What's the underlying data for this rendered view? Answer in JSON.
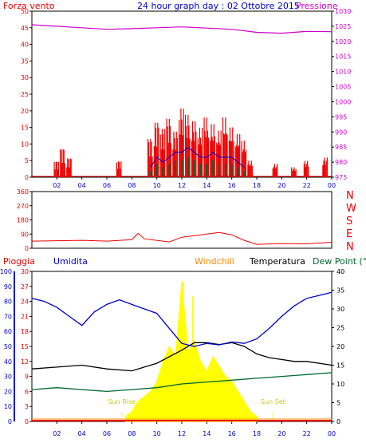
{
  "title": "24 hour graph day : 02 Ottobre 2015",
  "colors": {
    "red": "#ee0000",
    "blue": "#0000cc",
    "magenta": "#cc00cc",
    "green": "#006633",
    "yellow": "#ffff00",
    "orange": "#ff8800",
    "black": "#000000"
  },
  "chart_data": [
    {
      "type": "bar",
      "panel": "wind",
      "left_label": "Forza vento",
      "right_label": "Pressione",
      "left_axis": {
        "ticks": [
          0,
          5,
          10,
          15,
          20,
          25,
          30,
          35,
          40,
          45,
          50
        ],
        "range": [
          0,
          50
        ]
      },
      "right_axis": {
        "ticks": [
          975,
          980,
          985,
          990,
          995,
          1000,
          1005,
          1010,
          1015,
          1020,
          1025,
          1030
        ],
        "range": [
          975,
          1030
        ]
      },
      "x_ticks": [
        "02",
        "04",
        "06",
        "08",
        "10",
        "12",
        "14",
        "16",
        "18",
        "20",
        "22",
        "00"
      ],
      "wind_gust_bursts": [
        [
          2,
          5
        ],
        [
          2.5,
          9
        ],
        [
          3,
          6
        ],
        [
          7,
          5
        ],
        [
          9.5,
          12
        ],
        [
          10,
          17
        ],
        [
          10.5,
          15
        ],
        [
          11,
          18
        ],
        [
          11.5,
          14
        ],
        [
          12,
          21
        ],
        [
          12.5,
          19
        ],
        [
          13,
          17
        ],
        [
          13.5,
          15
        ],
        [
          14,
          18
        ],
        [
          14.5,
          16
        ],
        [
          15,
          14
        ],
        [
          15.5,
          18
        ],
        [
          16,
          15
        ],
        [
          16.5,
          13
        ],
        [
          17,
          11
        ],
        [
          17.5,
          5
        ],
        [
          19.5,
          4
        ],
        [
          21,
          3
        ],
        [
          22,
          5
        ],
        [
          23.5,
          6
        ]
      ],
      "wind_avg": [
        [
          9.5,
          2
        ],
        [
          10,
          4
        ],
        [
          10.5,
          3
        ],
        [
          11,
          4
        ],
        [
          11.5,
          5
        ],
        [
          12,
          5
        ],
        [
          12.5,
          6
        ],
        [
          13,
          5
        ],
        [
          13.5,
          4
        ],
        [
          14,
          4
        ],
        [
          14.5,
          5
        ],
        [
          15,
          4
        ],
        [
          15.5,
          4
        ],
        [
          16,
          4
        ],
        [
          16.5,
          3
        ],
        [
          17,
          2
        ]
      ],
      "pressure": [
        [
          0,
          1025.5
        ],
        [
          2,
          1025
        ],
        [
          4,
          1024.5
        ],
        [
          6,
          1024
        ],
        [
          8,
          1024.2
        ],
        [
          10,
          1024.5
        ],
        [
          12,
          1024.8
        ],
        [
          14,
          1024.4
        ],
        [
          16,
          1024
        ],
        [
          18,
          1023
        ],
        [
          20,
          1022.7
        ],
        [
          22,
          1023.3
        ],
        [
          24,
          1023.2
        ]
      ]
    },
    {
      "type": "line",
      "panel": "direction",
      "right_labels": [
        "N",
        "W",
        "S",
        "E",
        "N"
      ],
      "left_axis": {
        "ticks": [
          0,
          90,
          180,
          270,
          360
        ],
        "range": [
          0,
          360
        ]
      },
      "direction": [
        [
          0,
          45
        ],
        [
          4,
          50
        ],
        [
          6,
          45
        ],
        [
          8,
          55
        ],
        [
          8.5,
          95
        ],
        [
          9,
          60
        ],
        [
          11,
          40
        ],
        [
          12,
          70
        ],
        [
          13,
          80
        ],
        [
          14,
          90
        ],
        [
          15,
          100
        ],
        [
          16,
          85
        ],
        [
          17,
          50
        ],
        [
          18,
          25
        ],
        [
          20,
          30
        ],
        [
          22,
          28
        ],
        [
          24,
          38
        ]
      ]
    },
    {
      "type": "line",
      "panel": "weather",
      "labels": {
        "rain": "Pioggia",
        "humidity": "Umidita",
        "windchill": "Windchill",
        "temperature": "Temperatura",
        "dewpoint": "Dew Point (°C"
      },
      "humidity_axis": {
        "ticks": [
          0,
          10,
          20,
          30,
          40,
          50,
          60,
          70,
          80,
          90,
          100
        ],
        "range": [
          0,
          100
        ]
      },
      "rain_axis": {
        "ticks": [
          0,
          3,
          6,
          9,
          12,
          15,
          18,
          21,
          24,
          27,
          30
        ],
        "range": [
          0,
          30
        ]
      },
      "temp_axis": {
        "ticks": [
          0,
          5,
          10,
          15,
          20,
          25,
          30,
          35,
          40
        ],
        "range": [
          0,
          40
        ]
      },
      "annotations": [
        {
          "text": "Sun Rise",
          "x": 7.2
        },
        {
          "text": "Sun Set",
          "x": 19.3
        }
      ],
      "humidity": [
        [
          0,
          82
        ],
        [
          1,
          80
        ],
        [
          2,
          76
        ],
        [
          3,
          70
        ],
        [
          4,
          64
        ],
        [
          5,
          73
        ],
        [
          6,
          78
        ],
        [
          7,
          81
        ],
        [
          8,
          78
        ],
        [
          9,
          75
        ],
        [
          10,
          72
        ],
        [
          11,
          62
        ],
        [
          12,
          52
        ],
        [
          13,
          50
        ],
        [
          14,
          52
        ],
        [
          15,
          51
        ],
        [
          16,
          53
        ],
        [
          17,
          52
        ],
        [
          18,
          55
        ],
        [
          19,
          62
        ],
        [
          20,
          70
        ],
        [
          21,
          77
        ],
        [
          22,
          82
        ],
        [
          23,
          84
        ],
        [
          24,
          86
        ]
      ],
      "temperature": [
        [
          0,
          14
        ],
        [
          2,
          14.5
        ],
        [
          4,
          15
        ],
        [
          6,
          14
        ],
        [
          8,
          13.5
        ],
        [
          10,
          15.5
        ],
        [
          12,
          19
        ],
        [
          13,
          21
        ],
        [
          14,
          21
        ],
        [
          15,
          20.5
        ],
        [
          16,
          21
        ],
        [
          17,
          20
        ],
        [
          18,
          18
        ],
        [
          19,
          17
        ],
        [
          20,
          16.5
        ],
        [
          21,
          16
        ],
        [
          22,
          16
        ],
        [
          24,
          15
        ]
      ],
      "dewpoint": [
        [
          0,
          8.5
        ],
        [
          2,
          9
        ],
        [
          4,
          8.5
        ],
        [
          6,
          8
        ],
        [
          8,
          8.5
        ],
        [
          10,
          9
        ],
        [
          12,
          10
        ],
        [
          14,
          10.5
        ],
        [
          16,
          11
        ],
        [
          18,
          11.5
        ],
        [
          20,
          12
        ],
        [
          22,
          12.5
        ],
        [
          24,
          13
        ]
      ],
      "solar": [
        [
          7.5,
          1
        ],
        [
          8,
          2
        ],
        [
          8.5,
          4
        ],
        [
          9,
          5
        ],
        [
          9.5,
          6
        ],
        [
          10,
          8
        ],
        [
          10.5,
          12
        ],
        [
          11,
          15
        ],
        [
          11.5,
          13
        ],
        [
          12,
          28
        ],
        [
          12.5,
          14
        ],
        [
          13,
          16
        ],
        [
          13.5,
          12
        ],
        [
          14,
          10
        ],
        [
          14.5,
          13
        ],
        [
          15,
          11
        ],
        [
          15.5,
          9
        ],
        [
          16,
          8
        ],
        [
          16.5,
          6
        ],
        [
          17,
          4
        ],
        [
          17.5,
          2
        ],
        [
          18,
          1
        ]
      ]
    }
  ]
}
